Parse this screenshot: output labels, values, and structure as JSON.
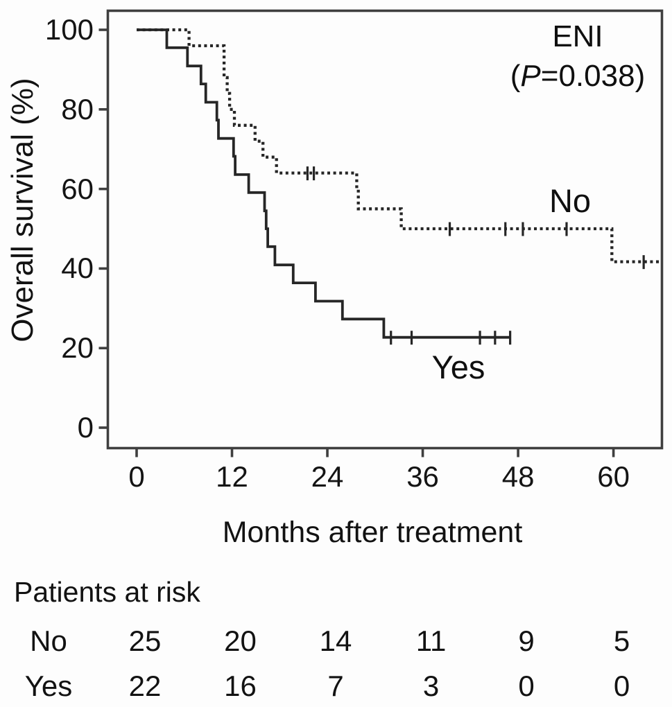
{
  "colors": {
    "line": "#262626",
    "frame": "#3f3f3f",
    "text": "#111111",
    "background": "#fdfdfd"
  },
  "chart_data": {
    "type": "line",
    "subtype": "kaplan-meier-step",
    "title": "",
    "xlabel": "Months after treatment",
    "ylabel": "Overall survival (%)",
    "xlim": [
      0,
      66
    ],
    "ylim": [
      0,
      100
    ],
    "xticks": [
      0,
      12,
      24,
      36,
      48,
      60
    ],
    "yticks": [
      100,
      80,
      60,
      40,
      20,
      0
    ],
    "grid": false,
    "legend_position": "curve-labels-inline",
    "annotation": {
      "line1": "ENI",
      "p_open": "(",
      "p_var": "P",
      "p_rest": "=0.038)"
    },
    "series": [
      {
        "name": "No",
        "style": "dotted",
        "steps": [
          [
            0,
            100
          ],
          [
            6.6,
            96
          ],
          [
            11.0,
            88
          ],
          [
            11.4,
            84
          ],
          [
            11.7,
            80
          ],
          [
            12.3,
            76
          ],
          [
            14.9,
            72
          ],
          [
            15.9,
            68
          ],
          [
            17.6,
            64
          ],
          [
            27.7,
            59.8
          ],
          [
            27.9,
            55
          ],
          [
            33.3,
            50
          ],
          [
            59.8,
            41.7
          ]
        ],
        "end": 66.1,
        "censors": [
          [
            21.5,
            64
          ],
          [
            22.3,
            64
          ],
          [
            39.4,
            50
          ],
          [
            46.4,
            50
          ],
          [
            48.6,
            50
          ],
          [
            54.1,
            50
          ],
          [
            63.8,
            41.7
          ]
        ]
      },
      {
        "name": "Yes",
        "style": "solid",
        "steps": [
          [
            0,
            100
          ],
          [
            3.8,
            95.5
          ],
          [
            6.4,
            90.9
          ],
          [
            8.1,
            86.4
          ],
          [
            8.7,
            81.8
          ],
          [
            10.1,
            77.3
          ],
          [
            10.3,
            72.7
          ],
          [
            12.2,
            68.2
          ],
          [
            12.4,
            63.6
          ],
          [
            14.1,
            59.1
          ],
          [
            16.1,
            54.5
          ],
          [
            16.3,
            50.0
          ],
          [
            16.5,
            45.5
          ],
          [
            17.4,
            40.9
          ],
          [
            19.7,
            36.4
          ],
          [
            22.5,
            31.8
          ],
          [
            25.9,
            27.3
          ],
          [
            31.1,
            22.7
          ]
        ],
        "end": 47.0,
        "censors": [
          [
            32.0,
            22.7
          ],
          [
            34.6,
            22.7
          ],
          [
            43.2,
            22.7
          ],
          [
            45.1,
            22.7
          ],
          [
            47.0,
            22.7
          ]
        ]
      }
    ]
  },
  "risk_table": {
    "title": "Patients at risk",
    "times": [
      0,
      12,
      24,
      36,
      48,
      60
    ],
    "rows": [
      {
        "label": "No",
        "counts": [
          25,
          20,
          14,
          11,
          9,
          5
        ]
      },
      {
        "label": "Yes",
        "counts": [
          22,
          16,
          7,
          3,
          0,
          0
        ]
      }
    ]
  }
}
